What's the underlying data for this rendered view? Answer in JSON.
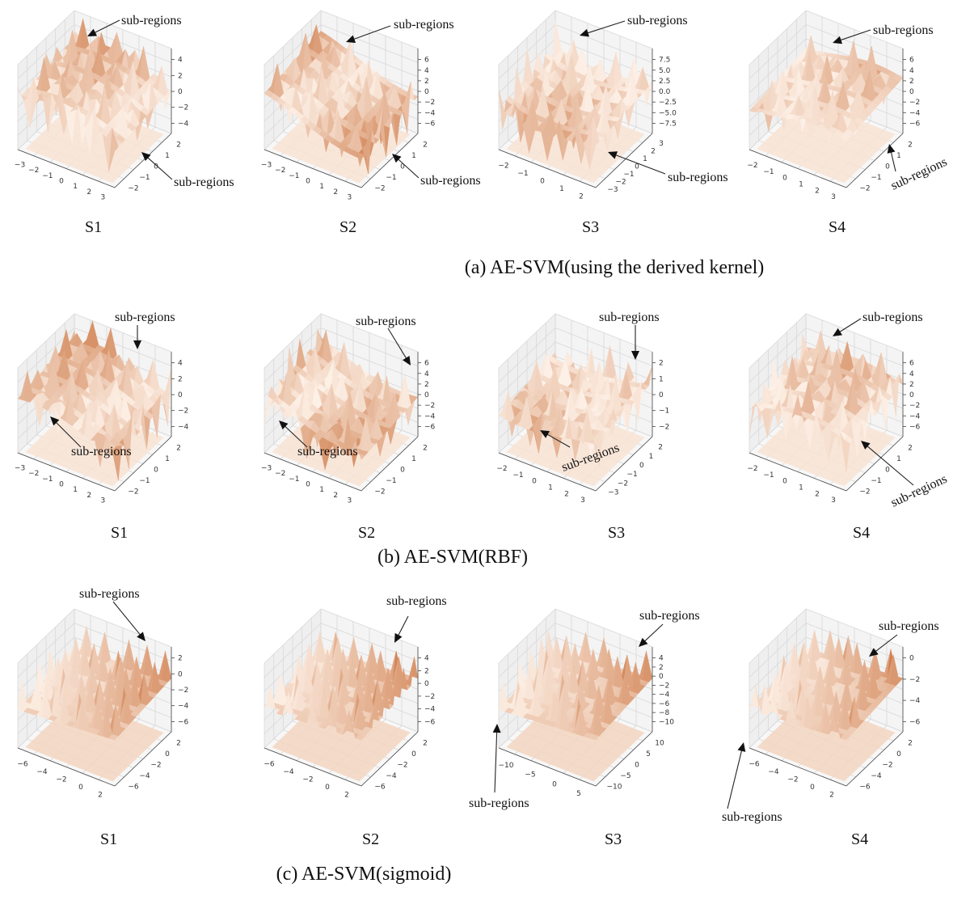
{
  "captions": [
    "(a) AE-SVM(using the derived kernel)",
    "(b) AE-SVM(RBF)",
    "(c) AE-SVM(sigmoid)"
  ],
  "colors": {
    "colormap": "Oranges",
    "low": "#fdf0e6",
    "high": "#c0581a",
    "pane": "#f2f2f2",
    "grid": "#d8d8d8"
  },
  "chart_data": [
    {
      "type": "surface",
      "row": "a",
      "label": "S1",
      "annotations": [
        "sub-regions",
        "sub-regions"
      ],
      "x_ticks": [
        "−3",
        "−2",
        "−1",
        "0",
        "1",
        "2",
        "3"
      ],
      "y_ticks": [
        "−2",
        "−1",
        "0",
        "1",
        "2"
      ],
      "z_ticks": [
        "−4",
        "−2",
        "0",
        "2",
        "4"
      ]
    },
    {
      "type": "surface",
      "row": "a",
      "label": "S2",
      "annotations": [
        "sub-regions",
        "sub-regions"
      ],
      "x_ticks": [
        "−3",
        "−2",
        "−1",
        "0",
        "1",
        "2",
        "3"
      ],
      "y_ticks": [
        "−2",
        "−1",
        "0",
        "1",
        "2"
      ],
      "z_ticks": [
        "−6",
        "−4",
        "−2",
        "0",
        "2",
        "4",
        "6"
      ]
    },
    {
      "type": "surface",
      "row": "a",
      "label": "S3",
      "annotations": [
        "sub-regions",
        "sub-regions"
      ],
      "x_ticks": [
        "−2",
        "−1",
        "0",
        "1",
        "2"
      ],
      "y_ticks": [
        "−3",
        "−2",
        "−1",
        "0",
        "1",
        "2",
        "3"
      ],
      "z_ticks": [
        "−7.5",
        "−5.0",
        "−2.5",
        "0.0",
        "2.5",
        "5.0",
        "7.5"
      ]
    },
    {
      "type": "surface",
      "row": "a",
      "label": "S4",
      "annotations": [
        "sub-regions",
        "sub-regions"
      ],
      "x_ticks": [
        "−2",
        "−1",
        "0",
        "1",
        "2",
        "3"
      ],
      "y_ticks": [
        "−2",
        "−1",
        "0",
        "1",
        "2"
      ],
      "z_ticks": [
        "−6",
        "−4",
        "−2",
        "0",
        "2",
        "4",
        "6"
      ]
    },
    {
      "type": "surface",
      "row": "b",
      "label": "S1",
      "annotations": [
        "sub-regions",
        "sub-regions"
      ],
      "x_ticks": [
        "−3",
        "−2",
        "−1",
        "0",
        "1",
        "2",
        "3"
      ],
      "y_ticks": [
        "−2",
        "−1",
        "0",
        "1",
        "2"
      ],
      "z_ticks": [
        "−4",
        "−2",
        "0",
        "2",
        "4"
      ]
    },
    {
      "type": "surface",
      "row": "b",
      "label": "S2",
      "annotations": [
        "sub-regions",
        "sub-regions"
      ],
      "x_ticks": [
        "−3",
        "−2",
        "−1",
        "0",
        "1",
        "2",
        "3"
      ],
      "y_ticks": [
        "−2",
        "−1",
        "0",
        "1",
        "2"
      ],
      "z_ticks": [
        "−6",
        "−4",
        "−2",
        "0",
        "2",
        "4",
        "6"
      ]
    },
    {
      "type": "surface",
      "row": "b",
      "label": "S3",
      "annotations": [
        "sub-regions",
        "sub-regions"
      ],
      "x_ticks": [
        "−2",
        "−1",
        "0",
        "1",
        "2",
        "3"
      ],
      "y_ticks": [
        "−3",
        "−2",
        "−1",
        "0",
        "1",
        "2"
      ],
      "z_ticks": [
        "−2",
        "−1",
        "0",
        "1",
        "2"
      ]
    },
    {
      "type": "surface",
      "row": "b",
      "label": "S4",
      "annotations": [
        "sub-regions",
        "sub-regions"
      ],
      "x_ticks": [
        "−2",
        "−1",
        "0",
        "1",
        "2",
        "3"
      ],
      "y_ticks": [
        "−2",
        "−1",
        "0",
        "1",
        "2"
      ],
      "z_ticks": [
        "−6",
        "−4",
        "−2",
        "0",
        "2",
        "4",
        "6"
      ]
    },
    {
      "type": "surface",
      "row": "c",
      "label": "S1",
      "annotations": [
        "sub-regions"
      ],
      "x_ticks": [
        "−6",
        "−4",
        "−2",
        "0",
        "2"
      ],
      "y_ticks": [
        "−6",
        "−4",
        "−2",
        "0",
        "2"
      ],
      "z_ticks": [
        "−6",
        "−4",
        "−2",
        "0",
        "2"
      ]
    },
    {
      "type": "surface",
      "row": "c",
      "label": "S2",
      "annotations": [
        "sub-regions"
      ],
      "x_ticks": [
        "−6",
        "−4",
        "−2",
        "0",
        "2"
      ],
      "y_ticks": [
        "−6",
        "−4",
        "−2",
        "0",
        "2"
      ],
      "z_ticks": [
        "−6",
        "−4",
        "−2",
        "0",
        "2",
        "4"
      ]
    },
    {
      "type": "surface",
      "row": "c",
      "label": "S3",
      "annotations": [
        "sub-regions",
        "sub-regions"
      ],
      "x_ticks": [
        "−10",
        "−5",
        "0",
        "5"
      ],
      "y_ticks": [
        "−10",
        "−5",
        "0",
        "5",
        "10"
      ],
      "z_ticks": [
        "−10",
        "−8",
        "−6",
        "−4",
        "−2",
        "0",
        "2",
        "4"
      ]
    },
    {
      "type": "surface",
      "row": "c",
      "label": "S4",
      "annotations": [
        "sub-regions",
        "sub-regions"
      ],
      "x_ticks": [
        "−6",
        "−4",
        "−2",
        "0",
        "2"
      ],
      "y_ticks": [
        "−6",
        "−4",
        "−2",
        "0",
        "2"
      ],
      "z_ticks": [
        "−6",
        "−4",
        "−2",
        "0"
      ]
    }
  ]
}
